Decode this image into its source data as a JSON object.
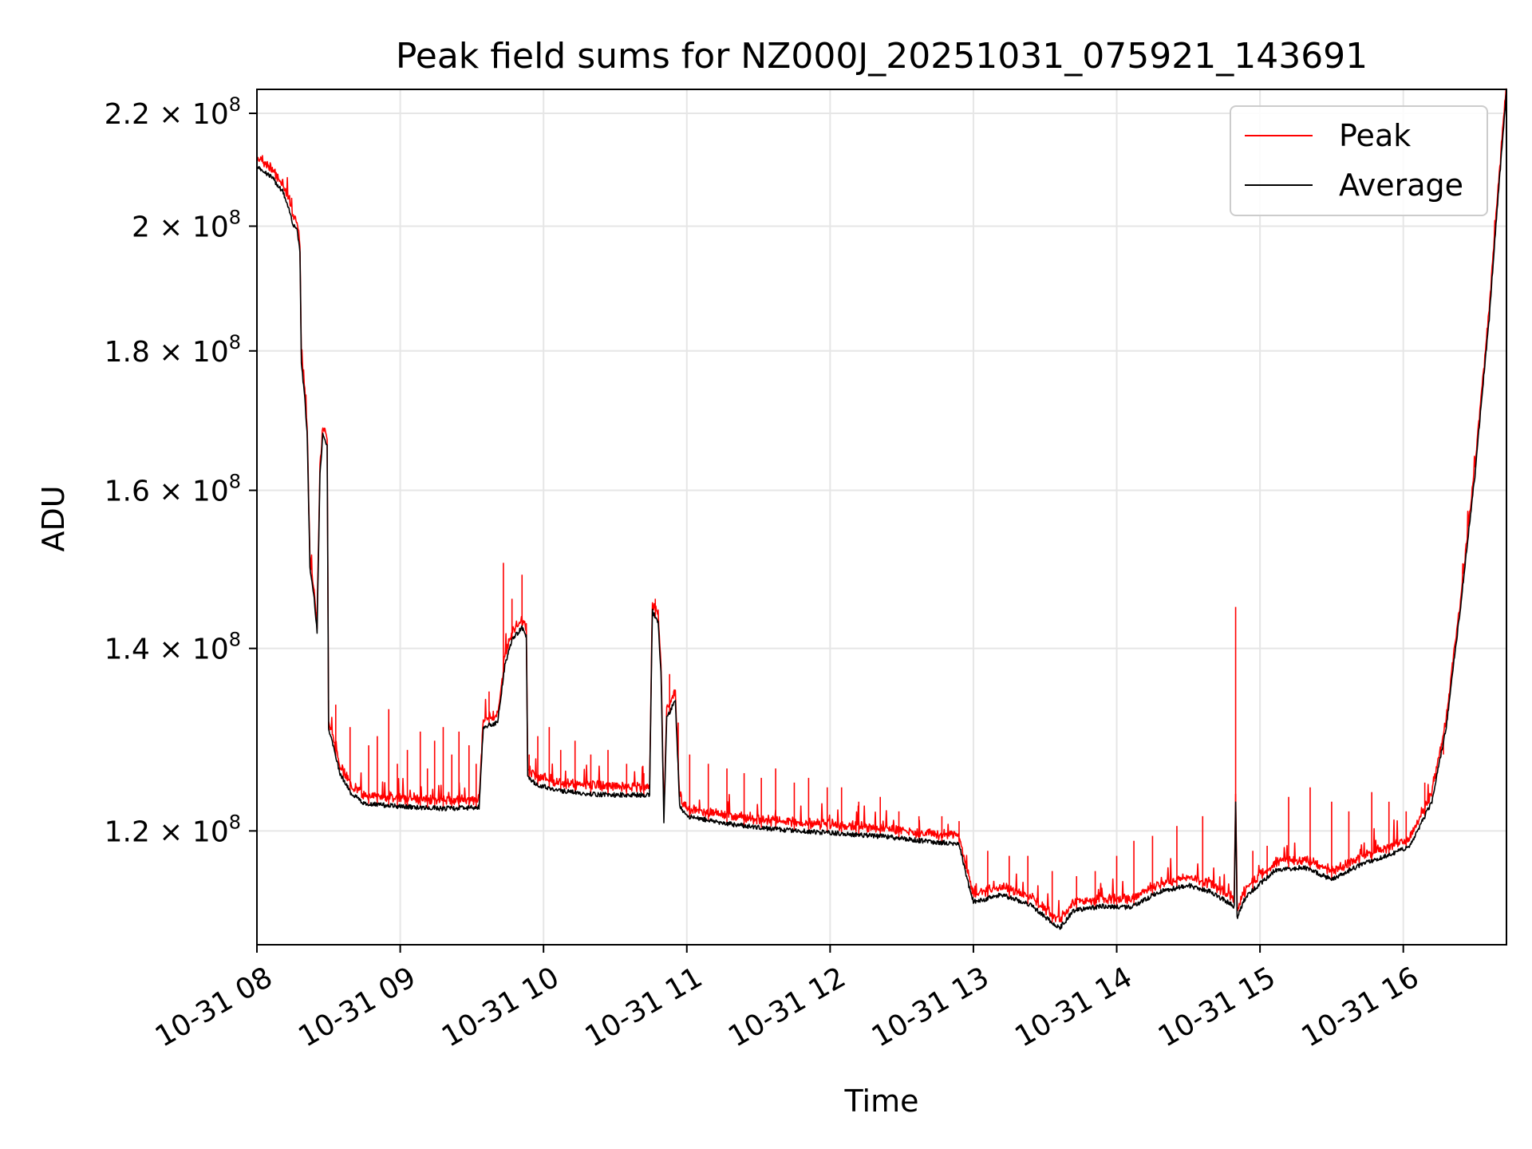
{
  "chart_data": {
    "type": "line",
    "title": "Peak field sums for NZ000J_20251031_075921_143691",
    "xlabel": "Time",
    "ylabel": "ADU",
    "yscale": "log",
    "xlim": [
      8.0,
      16.72
    ],
    "ylim": [
      109000000,
      224500000
    ],
    "grid": true,
    "legend_position": "top-right",
    "x_ticks": [
      {
        "value": 8,
        "label": "10-31 08"
      },
      {
        "value": 9,
        "label": "10-31 09"
      },
      {
        "value": 10,
        "label": "10-31 10"
      },
      {
        "value": 11,
        "label": "10-31 11"
      },
      {
        "value": 12,
        "label": "10-31 12"
      },
      {
        "value": 13,
        "label": "10-31 13"
      },
      {
        "value": 14,
        "label": "10-31 14"
      },
      {
        "value": 15,
        "label": "10-31 15"
      },
      {
        "value": 16,
        "label": "10-31 16"
      }
    ],
    "y_ticks": [
      {
        "value": 120000000,
        "mantissa": "1.2",
        "exponent": "8"
      },
      {
        "value": 140000000,
        "mantissa": "1.4",
        "exponent": "8"
      },
      {
        "value": 160000000,
        "mantissa": "1.6",
        "exponent": "8"
      },
      {
        "value": 180000000,
        "mantissa": "1.8",
        "exponent": "8"
      },
      {
        "value": 200000000,
        "mantissa": "2",
        "exponent": "8"
      },
      {
        "value": 220000000,
        "mantissa": "2.2",
        "exponent": "8"
      }
    ],
    "times_multiply": "×",
    "series": [
      {
        "name": "Peak",
        "color": "#ff0000"
      },
      {
        "name": "Average",
        "color": "#000000"
      }
    ],
    "average_profile": [
      [
        8.0,
        210.5
      ],
      [
        8.1,
        208.5
      ],
      [
        8.18,
        206.0
      ],
      [
        8.22,
        203.0
      ],
      [
        8.25,
        200.5
      ],
      [
        8.28,
        199.5
      ],
      [
        8.3,
        196.0
      ],
      [
        8.31,
        178.0
      ],
      [
        8.33,
        174.0
      ],
      [
        8.35,
        168.0
      ],
      [
        8.37,
        150.0
      ],
      [
        8.4,
        146.0
      ],
      [
        8.42,
        142.0
      ],
      [
        8.44,
        162.0
      ],
      [
        8.46,
        168.0
      ],
      [
        8.49,
        166.0
      ],
      [
        8.5,
        131.0
      ],
      [
        8.53,
        129.0
      ],
      [
        8.58,
        126.0
      ],
      [
        8.65,
        124.0
      ],
      [
        8.75,
        122.8
      ],
      [
        9.0,
        122.5
      ],
      [
        9.3,
        122.3
      ],
      [
        9.55,
        122.4
      ],
      [
        9.58,
        131.0
      ],
      [
        9.68,
        131.5
      ],
      [
        9.73,
        138.0
      ],
      [
        9.78,
        141.0
      ],
      [
        9.85,
        142.5
      ],
      [
        9.88,
        141.5
      ],
      [
        9.89,
        125.5
      ],
      [
        9.95,
        124.8
      ],
      [
        10.1,
        124.2
      ],
      [
        10.3,
        123.8
      ],
      [
        10.5,
        123.7
      ],
      [
        10.74,
        123.7
      ],
      [
        10.76,
        144.5
      ],
      [
        10.8,
        143.0
      ],
      [
        10.82,
        137.0
      ],
      [
        10.84,
        121.0
      ],
      [
        10.86,
        132.0
      ],
      [
        10.92,
        134.0
      ],
      [
        10.95,
        122.5
      ],
      [
        11.0,
        121.5
      ],
      [
        11.3,
        120.7
      ],
      [
        11.6,
        120.2
      ],
      [
        12.0,
        119.8
      ],
      [
        12.4,
        119.4
      ],
      [
        12.7,
        118.9
      ],
      [
        12.9,
        118.7
      ],
      [
        12.96,
        115.0
      ],
      [
        13.0,
        113.0
      ],
      [
        13.2,
        113.7
      ],
      [
        13.4,
        112.7
      ],
      [
        13.6,
        110.5
      ],
      [
        13.7,
        112.2
      ],
      [
        13.9,
        112.6
      ],
      [
        14.1,
        112.5
      ],
      [
        14.3,
        114.0
      ],
      [
        14.5,
        114.6
      ],
      [
        14.65,
        114.0
      ],
      [
        14.82,
        112.6
      ],
      [
        14.83,
        123.0
      ],
      [
        14.84,
        111.5
      ],
      [
        14.9,
        113.5
      ],
      [
        15.1,
        116.0
      ],
      [
        15.3,
        116.4
      ],
      [
        15.5,
        115.2
      ],
      [
        15.7,
        116.6
      ],
      [
        15.9,
        117.6
      ],
      [
        16.05,
        118.5
      ],
      [
        16.2,
        123.0
      ],
      [
        16.3,
        131.0
      ],
      [
        16.4,
        145.0
      ],
      [
        16.5,
        162.0
      ],
      [
        16.6,
        185.0
      ],
      [
        16.72,
        224.0
      ]
    ],
    "peak_spikes": [
      [
        8.5,
        134.0
      ],
      [
        8.55,
        133.5
      ],
      [
        8.65,
        131.0
      ],
      [
        8.78,
        129.0
      ],
      [
        8.84,
        130.0
      ],
      [
        8.92,
        133.0
      ],
      [
        8.98,
        127.0
      ],
      [
        9.05,
        128.5
      ],
      [
        9.14,
        130.5
      ],
      [
        9.19,
        126.5
      ],
      [
        9.24,
        129.5
      ],
      [
        9.3,
        131.0
      ],
      [
        9.36,
        128.0
      ],
      [
        9.41,
        130.5
      ],
      [
        9.48,
        129.0
      ],
      [
        9.53,
        127.0
      ],
      [
        9.62,
        135.0
      ],
      [
        9.72,
        150.5
      ],
      [
        9.78,
        146.0
      ],
      [
        9.85,
        149.0
      ],
      [
        9.9,
        128.0
      ],
      [
        9.96,
        130.0
      ],
      [
        10.04,
        131.0
      ],
      [
        10.12,
        128.5
      ],
      [
        10.22,
        129.5
      ],
      [
        10.33,
        128.0
      ],
      [
        10.45,
        128.5
      ],
      [
        10.58,
        127.0
      ],
      [
        10.7,
        126.0
      ],
      [
        10.78,
        146.0
      ],
      [
        10.88,
        137.0
      ],
      [
        10.94,
        131.5
      ],
      [
        11.02,
        128.0
      ],
      [
        11.15,
        127.0
      ],
      [
        11.28,
        126.5
      ],
      [
        11.4,
        126.0
      ],
      [
        11.52,
        125.5
      ],
      [
        11.62,
        126.5
      ],
      [
        11.75,
        125.0
      ],
      [
        11.85,
        125.5
      ],
      [
        11.98,
        124.5
      ],
      [
        12.08,
        124.5
      ],
      [
        12.2,
        123.0
      ],
      [
        12.35,
        123.5
      ],
      [
        12.48,
        122.0
      ],
      [
        12.62,
        121.5
      ],
      [
        12.78,
        121.5
      ],
      [
        12.9,
        121.0
      ],
      [
        13.1,
        118.0
      ],
      [
        13.25,
        117.5
      ],
      [
        13.38,
        117.5
      ],
      [
        13.55,
        116.0
      ],
      [
        13.72,
        115.5
      ],
      [
        13.85,
        116.0
      ],
      [
        14.0,
        117.5
      ],
      [
        14.12,
        119.0
      ],
      [
        14.25,
        119.5
      ],
      [
        14.42,
        120.5
      ],
      [
        14.6,
        121.5
      ],
      [
        14.83,
        145.0
      ],
      [
        14.95,
        118.0
      ],
      [
        15.05,
        118.5
      ],
      [
        15.2,
        123.5
      ],
      [
        15.35,
        124.5
      ],
      [
        15.5,
        123.0
      ],
      [
        15.62,
        122.0
      ],
      [
        15.78,
        124.0
      ],
      [
        15.9,
        123.0
      ],
      [
        16.02,
        122.0
      ],
      [
        16.15,
        125.0
      ],
      [
        16.28,
        128.0
      ]
    ]
  }
}
